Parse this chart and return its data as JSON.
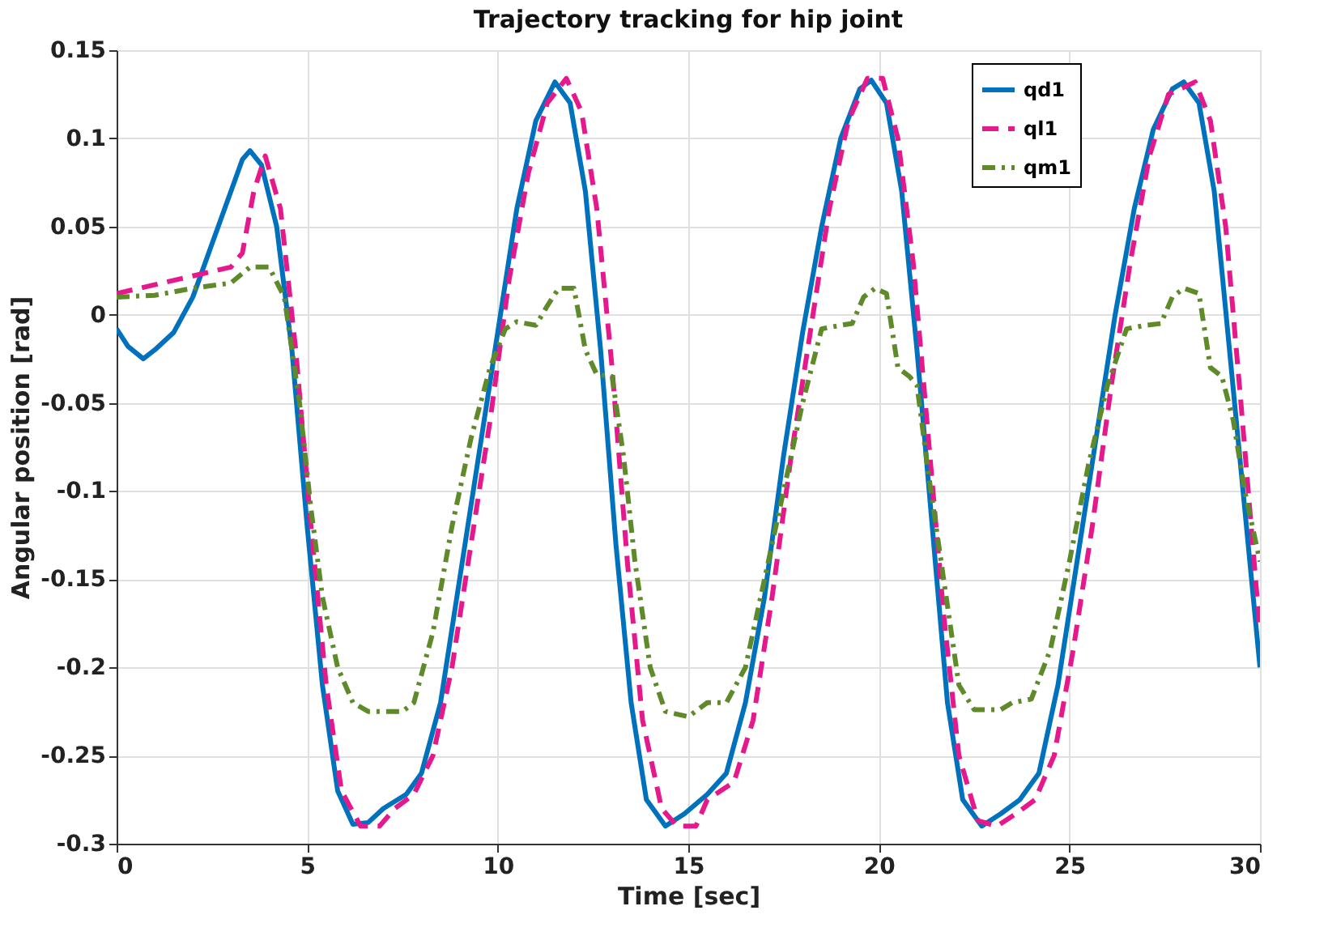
{
  "chart_data": {
    "type": "line",
    "title": "Trajectory tracking for hip joint",
    "xlabel": "Time [sec]",
    "ylabel": "Angular position [rad]",
    "xlim": [
      0,
      30
    ],
    "ylim": [
      -0.3,
      0.15
    ],
    "xticks": [
      0,
      5,
      10,
      15,
      20,
      25,
      30
    ],
    "yticks": [
      -0.3,
      -0.25,
      -0.2,
      -0.15,
      -0.1,
      -0.05,
      0,
      0.05,
      0.1,
      0.15
    ],
    "grid": true,
    "legend": "top right",
    "series": [
      {
        "name": "qd1",
        "color": "#0072bd",
        "line_style": "solid",
        "x": [
          0,
          0.3,
          0.7,
          1.0,
          1.5,
          2,
          2.5,
          3,
          3.3,
          3.5,
          3.8,
          4.2,
          4.6,
          5.0,
          5.4,
          5.8,
          6.2,
          6.6,
          7.0,
          7.6,
          8.0,
          8.5,
          9.0,
          9.5,
          10.0,
          10.5,
          11.0,
          11.5,
          11.9,
          12.3,
          12.7,
          13.1,
          13.5,
          13.9,
          14.4,
          14.9,
          15.5,
          16.0,
          16.5,
          17.0,
          17.5,
          18.0,
          18.5,
          19.0,
          19.5,
          19.8,
          20.2,
          20.6,
          21.0,
          21.4,
          21.8,
          22.2,
          22.7,
          23.2,
          23.7,
          24.2,
          24.7,
          25.2,
          25.7,
          26.2,
          26.7,
          27.2,
          27.7,
          28.0,
          28.4,
          28.8,
          29.2,
          29.6,
          30
        ],
        "values": [
          -0.008,
          -0.018,
          -0.025,
          -0.02,
          -0.01,
          0.01,
          0.04,
          0.07,
          0.088,
          0.093,
          0.085,
          0.05,
          -0.02,
          -0.12,
          -0.21,
          -0.27,
          -0.289,
          -0.288,
          -0.28,
          -0.272,
          -0.26,
          -0.22,
          -0.15,
          -0.08,
          -0.01,
          0.06,
          0.11,
          0.132,
          0.12,
          0.07,
          -0.02,
          -0.13,
          -0.22,
          -0.275,
          -0.29,
          -0.283,
          -0.272,
          -0.26,
          -0.22,
          -0.16,
          -0.08,
          -0.01,
          0.05,
          0.1,
          0.128,
          0.133,
          0.12,
          0.07,
          -0.02,
          -0.12,
          -0.22,
          -0.275,
          -0.29,
          -0.283,
          -0.275,
          -0.26,
          -0.21,
          -0.14,
          -0.07,
          0.0,
          0.06,
          0.105,
          0.128,
          0.132,
          0.12,
          0.07,
          -0.02,
          -0.11,
          -0.2
        ]
      },
      {
        "name": "ql1",
        "color": "#e6198c",
        "line_style": "dashed",
        "x": [
          0,
          1,
          2,
          3,
          3.3,
          3.6,
          3.9,
          4.3,
          4.7,
          5.1,
          5.5,
          5.9,
          6.4,
          6.9,
          7.3,
          7.8,
          8.3,
          8.8,
          9.3,
          9.8,
          10.3,
          10.8,
          11.3,
          11.8,
          12.2,
          12.6,
          13.0,
          13.4,
          13.8,
          14.3,
          14.7,
          15.2,
          15.5,
          16.2,
          16.7,
          17.2,
          17.7,
          18.2,
          18.7,
          19.2,
          19.7,
          20.1,
          20.5,
          20.9,
          21.3,
          21.7,
          22.1,
          22.6,
          23.1,
          23.6,
          24.1,
          24.6,
          25.1,
          25.6,
          26.1,
          26.6,
          27.1,
          27.6,
          28.3,
          28.7,
          29.1,
          29.5,
          30
        ],
        "values": [
          0.012,
          0.017,
          0.022,
          0.027,
          0.035,
          0.07,
          0.09,
          0.06,
          -0.02,
          -0.12,
          -0.21,
          -0.27,
          -0.29,
          -0.29,
          -0.28,
          -0.272,
          -0.25,
          -0.2,
          -0.13,
          -0.06,
          0.02,
          0.08,
          0.12,
          0.134,
          0.115,
          0.06,
          -0.03,
          -0.14,
          -0.23,
          -0.28,
          -0.29,
          -0.29,
          -0.275,
          -0.265,
          -0.23,
          -0.16,
          -0.08,
          -0.01,
          0.06,
          0.11,
          0.134,
          0.134,
          0.1,
          0.03,
          -0.07,
          -0.17,
          -0.25,
          -0.287,
          -0.29,
          -0.283,
          -0.275,
          -0.25,
          -0.19,
          -0.12,
          -0.04,
          0.03,
          0.09,
          0.125,
          0.132,
          0.11,
          0.05,
          -0.05,
          -0.18
        ]
      },
      {
        "name": "qm1",
        "color": "#5f8a2a",
        "line_style": "dotted",
        "x": [
          0,
          1,
          2,
          3,
          3.5,
          4.0,
          4.4,
          4.8,
          5.1,
          5.4,
          5.8,
          6.2,
          6.6,
          7.5,
          7.8,
          8.3,
          8.8,
          9.3,
          9.8,
          10.2,
          10.5,
          11.0,
          11.3,
          11.6,
          12.0,
          12.3,
          12.6,
          13.0,
          13.3,
          13.6,
          14.0,
          14.4,
          15.0,
          15.5,
          16.0,
          16.5,
          17.0,
          17.5,
          18.0,
          18.5,
          19.0,
          19.3,
          19.6,
          19.9,
          20.2,
          20.5,
          20.8,
          21.0,
          21.3,
          21.7,
          22.1,
          22.5,
          23.2,
          23.5,
          24.0,
          24.5,
          25.0,
          25.5,
          26.0,
          26.5,
          27.0,
          27.4,
          27.7,
          28.0,
          28.4,
          28.7,
          29.0,
          29.3,
          29.6,
          30
        ],
        "values": [
          0.01,
          0.011,
          0.015,
          0.018,
          0.027,
          0.027,
          0.01,
          -0.05,
          -0.11,
          -0.16,
          -0.2,
          -0.22,
          -0.225,
          -0.225,
          -0.22,
          -0.18,
          -0.12,
          -0.07,
          -0.03,
          -0.008,
          -0.004,
          -0.006,
          0.005,
          0.015,
          0.015,
          -0.02,
          -0.034,
          -0.035,
          -0.08,
          -0.14,
          -0.2,
          -0.225,
          -0.228,
          -0.22,
          -0.22,
          -0.2,
          -0.15,
          -0.1,
          -0.05,
          -0.008,
          -0.006,
          -0.005,
          0.01,
          0.015,
          0.012,
          -0.03,
          -0.035,
          -0.04,
          -0.09,
          -0.15,
          -0.21,
          -0.224,
          -0.224,
          -0.22,
          -0.218,
          -0.19,
          -0.14,
          -0.085,
          -0.04,
          -0.008,
          -0.006,
          -0.005,
          0.01,
          0.015,
          0.012,
          -0.03,
          -0.035,
          -0.06,
          -0.1,
          -0.14
        ]
      }
    ]
  }
}
